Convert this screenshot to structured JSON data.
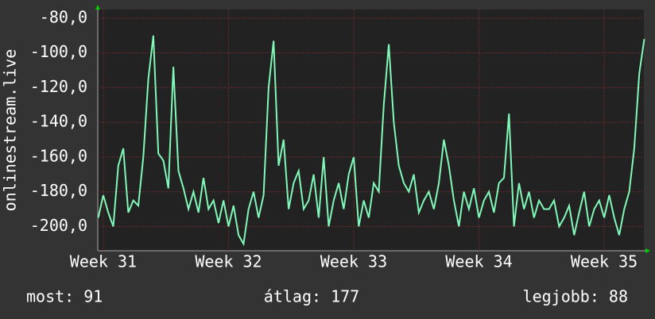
{
  "chart_data": {
    "type": "line",
    "y_label": "onlinestream.live",
    "x": [
      30.96,
      31.0,
      31.04,
      31.08,
      31.12,
      31.16,
      31.2,
      31.24,
      31.28,
      31.32,
      31.36,
      31.4,
      31.44,
      31.48,
      31.52,
      31.56,
      31.6,
      31.64,
      31.68,
      31.72,
      31.76,
      31.8,
      31.84,
      31.88,
      31.92,
      31.96,
      32.0,
      32.04,
      32.08,
      32.12,
      32.16,
      32.2,
      32.24,
      32.28,
      32.32,
      32.36,
      32.4,
      32.44,
      32.48,
      32.52,
      32.56,
      32.6,
      32.64,
      32.68,
      32.72,
      32.76,
      32.8,
      32.84,
      32.88,
      32.92,
      32.96,
      33.0,
      33.04,
      33.08,
      33.12,
      33.16,
      33.2,
      33.24,
      33.28,
      33.32,
      33.36,
      33.4,
      33.44,
      33.48,
      33.52,
      33.56,
      33.6,
      33.64,
      33.68,
      33.72,
      33.76,
      33.8,
      33.84,
      33.88,
      33.92,
      33.96,
      34.0,
      34.04,
      34.08,
      34.12,
      34.16,
      34.2,
      34.24,
      34.28,
      34.32,
      34.36,
      34.4,
      34.44,
      34.48,
      34.52,
      34.56,
      34.6,
      34.64,
      34.68,
      34.72,
      34.76,
      34.8,
      34.84,
      34.88,
      34.92,
      34.96,
      35.0,
      35.04,
      35.08,
      35.12,
      35.16,
      35.2,
      35.24,
      35.28,
      35.32
    ],
    "series": [
      {
        "color": "#80f8b8",
        "values": [
          -195,
          -182,
          -192,
          -200,
          -165,
          -155,
          -192,
          -185,
          -188,
          -160,
          -115,
          -90,
          -158,
          -162,
          -178,
          -108,
          -168,
          -178,
          -190,
          -180,
          -192,
          -172,
          -190,
          -185,
          -198,
          -185,
          -200,
          -188,
          -205,
          -210,
          -190,
          -180,
          -195,
          -182,
          -120,
          -93,
          -165,
          -150,
          -190,
          -175,
          -168,
          -190,
          -185,
          -170,
          -195,
          -160,
          -200,
          -185,
          -175,
          -190,
          -170,
          -160,
          -200,
          -185,
          -195,
          -175,
          -180,
          -130,
          -95,
          -140,
          -165,
          -175,
          -180,
          -170,
          -192,
          -185,
          -180,
          -190,
          -175,
          -150,
          -165,
          -185,
          -200,
          -180,
          -190,
          -178,
          -195,
          -185,
          -180,
          -192,
          -175,
          -172,
          -135,
          -200,
          -175,
          -190,
          -180,
          -195,
          -185,
          -190,
          -190,
          -185,
          -200,
          -195,
          -188,
          -205,
          -192,
          -180,
          -200,
          -190,
          -185,
          -195,
          -182,
          -195,
          -205,
          -190,
          -180,
          -155,
          -112,
          -92
        ]
      }
    ],
    "xlim": [
      30.956,
      35.317
    ],
    "xticks": [
      {
        "value": 31,
        "label": "Week 31"
      },
      {
        "value": 32,
        "label": "Week 32"
      },
      {
        "value": 33,
        "label": "Week 33"
      },
      {
        "value": 34,
        "label": "Week 34"
      },
      {
        "value": 35,
        "label": "Week 35"
      }
    ],
    "ylim": [
      -214,
      -75
    ],
    "yticks": [
      {
        "value": -200,
        "label": "-200,0"
      },
      {
        "value": -180,
        "label": "-180,0"
      },
      {
        "value": -160,
        "label": "-160,0"
      },
      {
        "value": -140,
        "label": "-140,0"
      },
      {
        "value": -120,
        "label": "-120,0"
      },
      {
        "value": -100,
        "label": "-100,0"
      },
      {
        "value": -80,
        "label": "-80,0"
      }
    ],
    "grid": true,
    "footer": [
      "most: 91",
      "átlag: 177",
      "legjobb: 88"
    ]
  }
}
